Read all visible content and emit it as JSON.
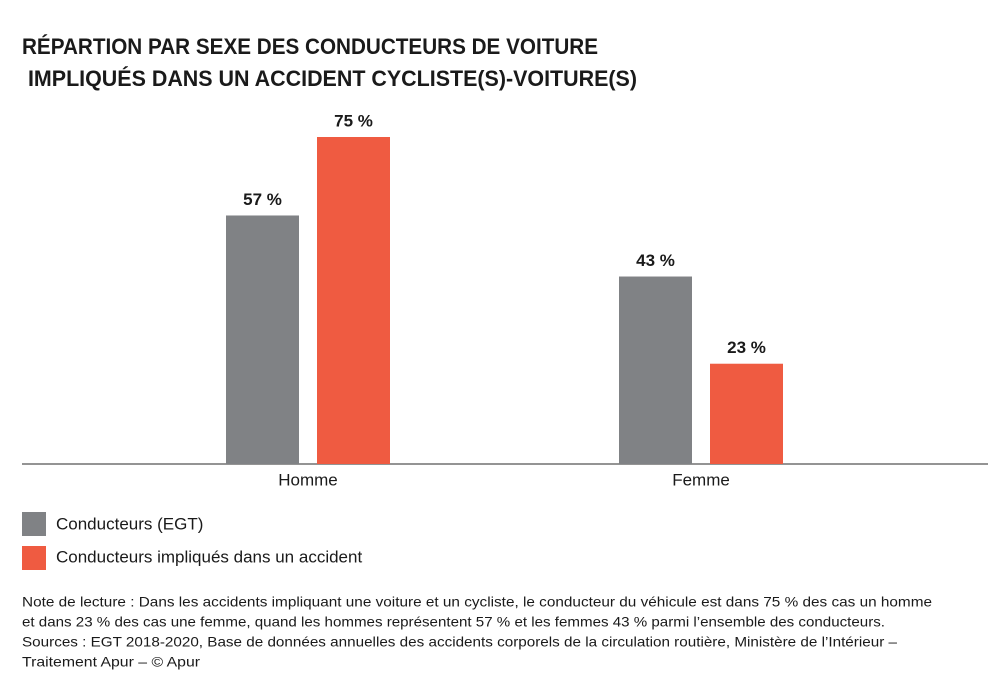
{
  "chart_data": {
    "type": "bar",
    "title": [
      "RÉPARTION PAR SEXE DES CONDUCTEURS DE VOITURE",
      " IMPLIQUÉS DANS UN ACCIDENT CYCLISTE(S)-VOITURE(S)"
    ],
    "categories": [
      "Homme",
      "Femme"
    ],
    "series": [
      {
        "name": "Conducteurs (EGT)",
        "color": "#808285",
        "values": [
          57,
          43
        ],
        "value_labels": [
          "57 %",
          "43 %"
        ]
      },
      {
        "name": "Conducteurs impliqués dans un accident",
        "color": "#ef5b41",
        "values": [
          75,
          23
        ],
        "value_labels": [
          "75 %",
          "23 %"
        ]
      }
    ],
    "notes": [
      "Note de lecture : Dans les accidents impliquant une voiture et un cycliste, le conducteur du véhicule est dans 75 % des cas un homme",
      "et dans 23 % des cas une femme, quand les hommes représentent 57 % et les femmes 43 % parmi l’ensemble des conducteurs.",
      "Sources : EGT 2018-2020, Base de données annuelles des accidents corporels de la circulation routière, Ministère de l’Intérieur –",
      "Traitement Apur – © Apur"
    ]
  }
}
